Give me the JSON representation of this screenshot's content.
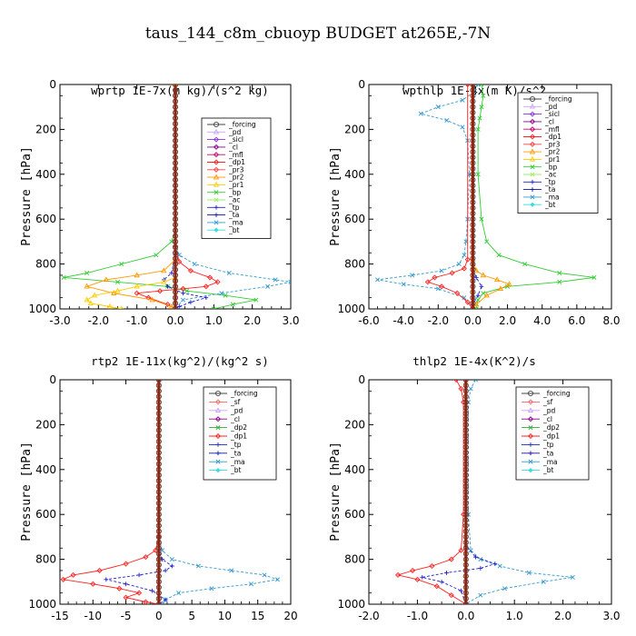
{
  "figure": {
    "title": "taus_144_c8m_cbuoyp  BUDGET at265E,-7N"
  },
  "colors": {
    "forcing": "#444444",
    "pd": "#c8a2ff",
    "sicl": "#8a2be2",
    "cl": "#8b008b",
    "mfl": "#cc0066",
    "dp1": "#ff2020",
    "pr3": "#ff4040",
    "pr2": "#ff9900",
    "pr1": "#ffcc00",
    "bp": "#33cc33",
    "ac": "#99ee66",
    "tp": "#2222cc",
    "ta": "#1111aa",
    "ma": "#3399cc",
    "bt": "#33dddd",
    "sf": "#ff6666",
    "dp2": "#33aa33",
    "zero_line": "#cc2200"
  },
  "chart_data": [
    {
      "type": "line",
      "title": "wprtp  1E-7x(m kg)/(s^2 kg)",
      "ylabel": "Pressure [hPa]",
      "xlim": [
        -3.0,
        3.0
      ],
      "ylim": [
        1000,
        0
      ],
      "xticks": [
        -3.0,
        -2.0,
        -1.0,
        0.0,
        1.0,
        2.0,
        3.0
      ],
      "xtick_labels": [
        "-3.0",
        "-2.0",
        "-1.0",
        "0.0",
        "1.0",
        "2.0",
        "3.0"
      ],
      "yticks": [
        0,
        200,
        400,
        600,
        800,
        1000
      ],
      "ytick_labels": [
        "0",
        "200",
        "400",
        "600",
        "800",
        "1000"
      ],
      "legend": [
        "_forcing",
        "_pd",
        "_sicl",
        "_cl",
        "_mfl",
        "_dp1",
        "_pr3",
        "_pr2",
        "_pr1",
        "_bp",
        "_ac",
        "_tp",
        "_ta",
        "_ma",
        "_bt"
      ],
      "series": [
        {
          "key": "bp",
          "x": [
            0,
            0,
            0,
            -0.1,
            -0.5,
            -1.4,
            -2.3,
            -2.9,
            -1.5,
            -0.2,
            0.3,
            1.3,
            2.1,
            1.5,
            1.0
          ],
          "y": [
            0,
            600,
            650,
            700,
            760,
            800,
            840,
            860,
            880,
            900,
            920,
            940,
            960,
            980,
            1000
          ]
        },
        {
          "key": "ma",
          "x": [
            0,
            0,
            0.1,
            0.5,
            1.4,
            2.6,
            3.0,
            2.4,
            1.2,
            0.2,
            0.0
          ],
          "y": [
            0,
            700,
            760,
            800,
            840,
            870,
            880,
            900,
            930,
            960,
            1000
          ]
        },
        {
          "key": "dp1",
          "x": [
            0,
            0,
            0.1,
            0.4,
            0.9,
            1.1,
            0.8,
            0.2,
            -0.4,
            -1.0,
            -0.7,
            -0.2,
            0.0
          ],
          "y": [
            0,
            720,
            790,
            830,
            860,
            880,
            900,
            910,
            920,
            930,
            950,
            980,
            1000
          ]
        },
        {
          "key": "tp",
          "x": [
            0,
            0,
            -0.1,
            -0.3,
            -0.2,
            0.2,
            0.8,
            0.4,
            0.1,
            0.0
          ],
          "y": [
            0,
            760,
            840,
            870,
            900,
            930,
            950,
            970,
            990,
            1000
          ]
        },
        {
          "key": "pr2",
          "x": [
            0,
            0,
            -0.3,
            -1.0,
            -1.8,
            -2.3,
            -1.6,
            -0.6,
            -0.1,
            0.0
          ],
          "y": [
            0,
            780,
            830,
            850,
            870,
            900,
            930,
            960,
            990,
            1000
          ]
        },
        {
          "key": "pr1",
          "x": [
            0,
            0,
            -0.3,
            -1.0,
            -1.5,
            -2.1,
            -2.3,
            -2.2,
            -1.7,
            -1.4
          ],
          "y": [
            0,
            860,
            880,
            900,
            920,
            940,
            960,
            975,
            990,
            1000
          ]
        },
        {
          "key": "forcing",
          "x": [
            0,
            0,
            0,
            0,
            0,
            0,
            0,
            0,
            0,
            0,
            0,
            0,
            0,
            0,
            0,
            0,
            0,
            0,
            0,
            0,
            0,
            0,
            0,
            0,
            0,
            0,
            0,
            0,
            0,
            0,
            0,
            0,
            0,
            0,
            0,
            0,
            0,
            0,
            0,
            0,
            0
          ],
          "y": [
            0,
            25,
            50,
            75,
            100,
            125,
            150,
            175,
            200,
            225,
            250,
            275,
            300,
            325,
            350,
            375,
            400,
            425,
            450,
            475,
            500,
            525,
            550,
            575,
            600,
            625,
            650,
            675,
            700,
            725,
            750,
            775,
            800,
            825,
            850,
            875,
            900,
            925,
            950,
            975,
            1000
          ]
        }
      ]
    },
    {
      "type": "line",
      "title": "wpthlp  1E-4x(m K)/s^2",
      "ylabel": "Pressure [hPa]",
      "xlim": [
        -6.0,
        8.0
      ],
      "ylim": [
        1000,
        0
      ],
      "xticks": [
        -6.0,
        -4.0,
        -2.0,
        0.0,
        2.0,
        4.0,
        6.0,
        8.0
      ],
      "xtick_labels": [
        "-6.0",
        "-4.0",
        "-2.0",
        "0.0",
        "2.0",
        "4.0",
        "6.0",
        "8.0"
      ],
      "yticks": [
        0,
        200,
        400,
        600,
        800,
        1000
      ],
      "ytick_labels": [
        "0",
        "200",
        "400",
        "600",
        "800",
        "1000"
      ],
      "legend": [
        "_forcing",
        "_pd",
        "_sicl",
        "_cl",
        "_mfl",
        "_dp1",
        "_pr3",
        "_pr2",
        "_pr1",
        "_bp",
        "_ac",
        "_tp",
        "_ta",
        "_ma",
        "_bt"
      ],
      "series": [
        {
          "key": "ma",
          "x": [
            0.3,
            0.1,
            -0.6,
            -2.0,
            -3.0,
            -1.5,
            -0.6,
            -0.3,
            -0.2,
            -0.3,
            -0.4,
            -0.5,
            -0.8,
            -1.8,
            -3.5,
            -5.5,
            -4.0,
            -2.0,
            -0.5,
            0.0
          ],
          "y": [
            0,
            30,
            70,
            100,
            130,
            160,
            190,
            250,
            400,
            600,
            700,
            760,
            800,
            830,
            850,
            870,
            890,
            910,
            950,
            1000
          ]
        },
        {
          "key": "bp",
          "x": [
            0.5,
            0.6,
            0.5,
            0.4,
            0.3,
            0.3,
            0.5,
            0.8,
            1.5,
            3.0,
            5.0,
            7.0,
            5.0,
            2.0,
            0.6,
            0.3,
            0.2
          ],
          "y": [
            0,
            50,
            100,
            150,
            200,
            400,
            600,
            700,
            760,
            800,
            840,
            860,
            880,
            900,
            930,
            960,
            1000
          ]
        },
        {
          "key": "pr2",
          "x": [
            0,
            0,
            0.2,
            0.6,
            1.4,
            2.1,
            1.6,
            0.8,
            0.2,
            0.0
          ],
          "y": [
            0,
            780,
            830,
            850,
            870,
            890,
            910,
            940,
            980,
            1000
          ]
        },
        {
          "key": "dp1",
          "x": [
            -0.3,
            -0.3,
            -0.5,
            -1.2,
            -2.2,
            -2.6,
            -1.8,
            -0.9,
            -0.3,
            0.0
          ],
          "y": [
            0,
            780,
            820,
            840,
            860,
            880,
            900,
            930,
            970,
            1000
          ]
        },
        {
          "key": "tp",
          "x": [
            0,
            0,
            0.2,
            0.5,
            0.3,
            0.0,
            0.0
          ],
          "y": [
            0,
            820,
            860,
            900,
            940,
            980,
            1000
          ]
        },
        {
          "key": "forcing",
          "x": [
            0,
            0,
            0,
            0,
            0,
            0,
            0,
            0,
            0,
            0,
            0,
            0,
            0,
            0,
            0,
            0,
            0,
            0,
            0,
            0,
            0,
            0,
            0,
            0,
            0,
            0,
            0,
            0,
            0,
            0,
            0,
            0,
            0,
            0,
            0,
            0,
            0,
            0,
            0,
            0,
            0
          ],
          "y": [
            0,
            25,
            50,
            75,
            100,
            125,
            150,
            175,
            200,
            225,
            250,
            275,
            300,
            325,
            350,
            375,
            400,
            425,
            450,
            475,
            500,
            525,
            550,
            575,
            600,
            625,
            650,
            675,
            700,
            725,
            750,
            775,
            800,
            825,
            850,
            875,
            900,
            925,
            950,
            975,
            1000
          ]
        }
      ]
    },
    {
      "type": "line",
      "title": "rtp2  1E-11x(kg^2)/(kg^2 s)",
      "ylabel": "Pressure [hPa]",
      "xlim": [
        -15,
        20
      ],
      "ylim": [
        1000,
        0
      ],
      "xticks": [
        -15,
        -10,
        -5,
        0,
        5,
        10,
        15,
        20
      ],
      "xtick_labels": [
        "-15",
        "-10",
        "-5",
        "0",
        "5",
        "10",
        "15",
        "20"
      ],
      "yticks": [
        0,
        200,
        400,
        600,
        800,
        1000
      ],
      "ytick_labels": [
        "0",
        "200",
        "400",
        "600",
        "800",
        "1000"
      ],
      "legend": [
        "_forcing",
        "_sf",
        "_pd",
        "_cl",
        "_dp2",
        "_dp1",
        "_tp",
        "_ta",
        "_ma",
        "_bt"
      ],
      "series": [
        {
          "key": "dp1",
          "x": [
            0,
            0,
            -0.5,
            -2.0,
            -5.0,
            -9.0,
            -13.0,
            -14.5,
            -10.0,
            -6.0,
            -3.0,
            -5.0,
            -2.0,
            0.0
          ],
          "y": [
            0,
            700,
            760,
            790,
            820,
            850,
            870,
            890,
            910,
            930,
            950,
            970,
            990,
            1000
          ]
        },
        {
          "key": "ma",
          "x": [
            0,
            0,
            0.5,
            2.0,
            6.0,
            11.0,
            16.0,
            18.0,
            14.0,
            8.0,
            3.0,
            1.0,
            0.5
          ],
          "y": [
            0,
            700,
            760,
            800,
            830,
            850,
            870,
            890,
            910,
            930,
            950,
            980,
            1000
          ]
        },
        {
          "key": "tp",
          "x": [
            0,
            0,
            0.5,
            2.0,
            1.0,
            -3.0,
            -8.0,
            -5.0,
            -1.0,
            1.0,
            0.0
          ],
          "y": [
            0,
            760,
            800,
            830,
            850,
            870,
            890,
            910,
            940,
            980,
            1000
          ]
        },
        {
          "key": "forcing",
          "x": [
            0,
            0,
            0,
            0,
            0,
            0,
            0,
            0,
            0,
            0,
            0,
            0,
            0,
            0,
            0,
            0,
            0,
            0,
            0,
            0,
            0,
            0,
            0,
            0,
            0,
            0,
            0,
            0,
            0,
            0,
            0,
            0,
            0,
            0,
            0,
            0,
            0,
            0,
            0,
            0,
            0
          ],
          "y": [
            0,
            25,
            50,
            75,
            100,
            125,
            150,
            175,
            200,
            225,
            250,
            275,
            300,
            325,
            350,
            375,
            400,
            425,
            450,
            475,
            500,
            525,
            550,
            575,
            600,
            625,
            650,
            675,
            700,
            725,
            750,
            775,
            800,
            825,
            850,
            875,
            900,
            925,
            950,
            975,
            1000
          ]
        }
      ]
    },
    {
      "type": "line",
      "title": "thlp2  1E-4x(K^2)/s",
      "ylabel": "Pressure [hPa]",
      "xlim": [
        -2.0,
        3.0
      ],
      "ylim": [
        1000,
        0
      ],
      "xticks": [
        -2.0,
        -1.0,
        0.0,
        1.0,
        2.0,
        3.0
      ],
      "xtick_labels": [
        "-2.0",
        "-1.0",
        "0.0",
        "1.0",
        "2.0",
        "3.0"
      ],
      "yticks": [
        0,
        200,
        400,
        600,
        800,
        1000
      ],
      "ytick_labels": [
        "0",
        "200",
        "400",
        "600",
        "800",
        "1000"
      ],
      "legend": [
        "_forcing",
        "_sf",
        "_pd",
        "_cl",
        "_dp2",
        "_dp1",
        "_tp",
        "_ta",
        "_ma",
        "_bt"
      ],
      "series": [
        {
          "key": "dp1",
          "x": [
            -0.2,
            -0.1,
            -0.05,
            -0.05,
            -0.1,
            -0.3,
            -0.7,
            -1.1,
            -1.4,
            -1.0,
            -0.6,
            -0.3,
            0.0
          ],
          "y": [
            0,
            40,
            100,
            600,
            760,
            800,
            830,
            850,
            870,
            890,
            920,
            960,
            1000
          ]
        },
        {
          "key": "ma",
          "x": [
            0.2,
            0.1,
            0.05,
            0.05,
            0.1,
            0.3,
            0.7,
            1.3,
            2.2,
            1.6,
            0.8,
            0.3,
            0.0
          ],
          "y": [
            0,
            40,
            100,
            600,
            760,
            800,
            830,
            860,
            880,
            900,
            930,
            960,
            1000
          ]
        },
        {
          "key": "tp",
          "x": [
            0,
            0,
            0.2,
            0.6,
            0.3,
            -0.4,
            -0.9,
            -0.5,
            -0.1,
            0.0
          ],
          "y": [
            0,
            740,
            790,
            820,
            840,
            860,
            880,
            900,
            940,
            1000
          ]
        },
        {
          "key": "forcing",
          "x": [
            0,
            0,
            0,
            0,
            0,
            0,
            0,
            0,
            0,
            0,
            0,
            0,
            0,
            0,
            0,
            0,
            0,
            0,
            0,
            0,
            0,
            0,
            0,
            0,
            0,
            0,
            0,
            0,
            0,
            0,
            0,
            0,
            0,
            0,
            0,
            0,
            0,
            0,
            0,
            0,
            0
          ],
          "y": [
            0,
            25,
            50,
            75,
            100,
            125,
            150,
            175,
            200,
            225,
            250,
            275,
            300,
            325,
            350,
            375,
            400,
            425,
            450,
            475,
            500,
            525,
            550,
            575,
            600,
            625,
            650,
            675,
            700,
            725,
            750,
            775,
            800,
            825,
            850,
            875,
            900,
            925,
            950,
            975,
            1000
          ]
        }
      ]
    }
  ]
}
